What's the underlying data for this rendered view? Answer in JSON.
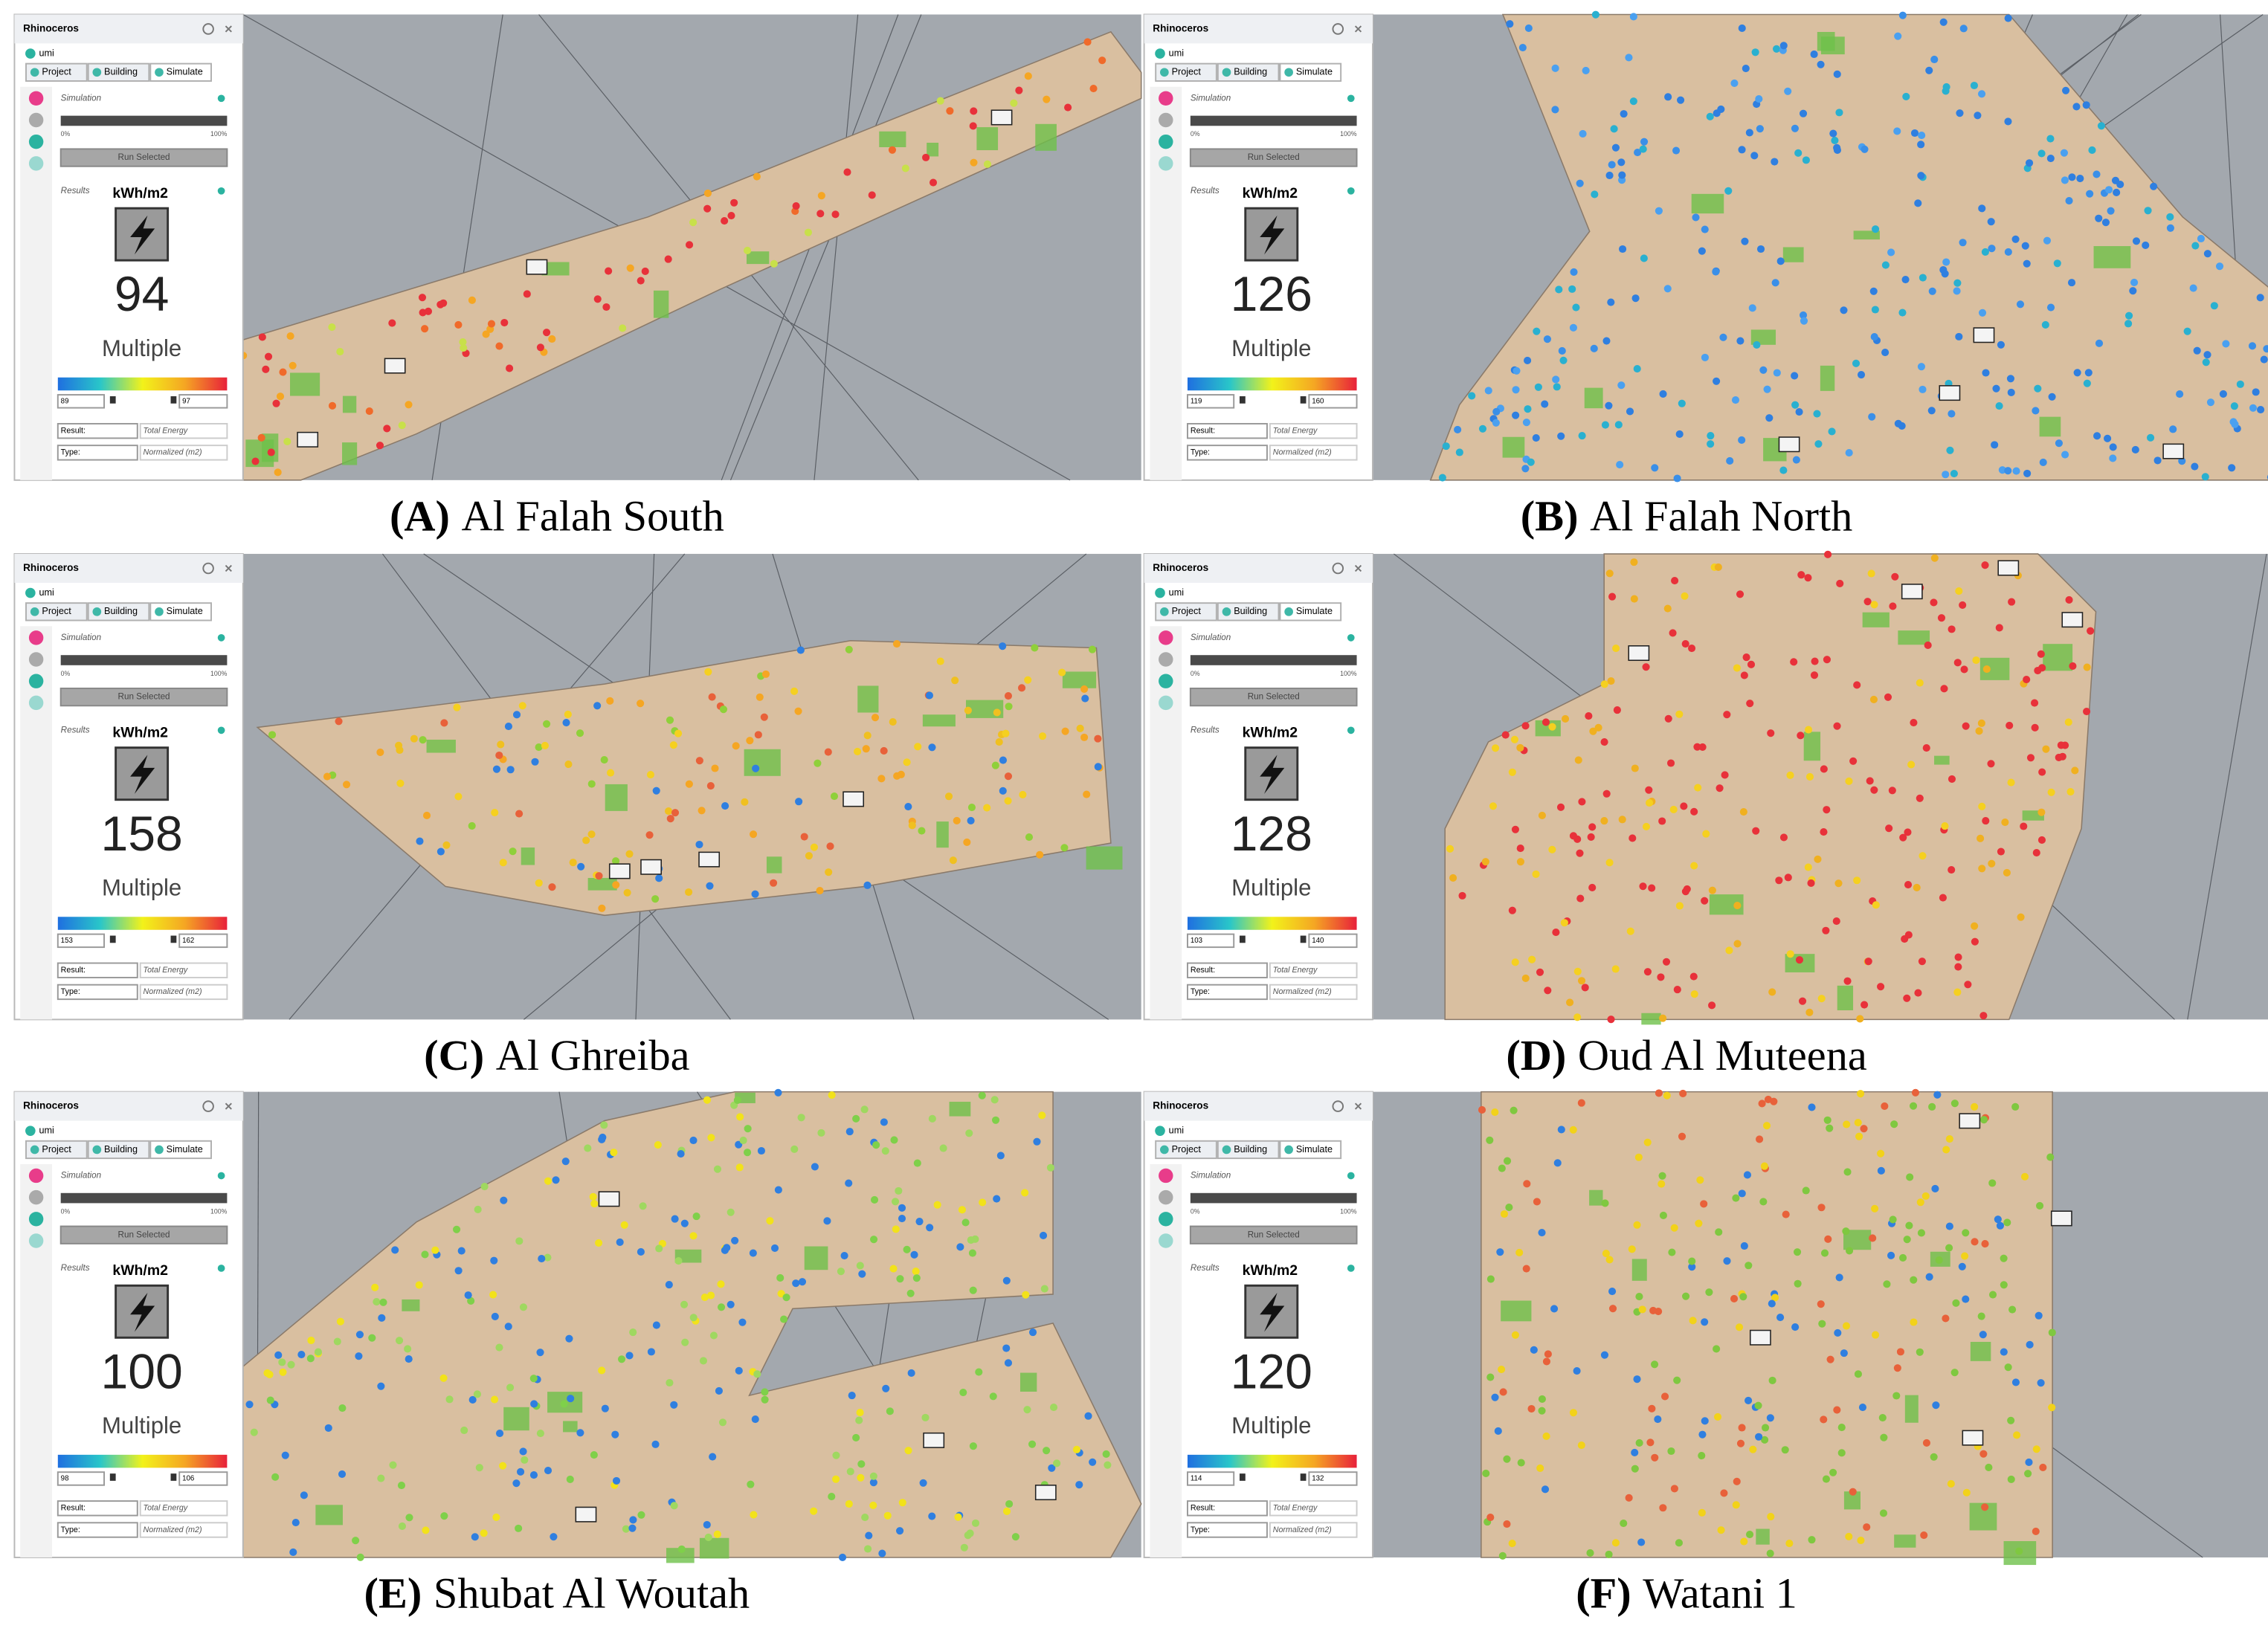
{
  "panels": [
    {
      "label": "(A)",
      "name": "Al Falah South",
      "app_title": "Rhinoceros",
      "tab": "umi",
      "tabs": [
        "Project",
        "Building",
        "Simulate"
      ],
      "simulation": "Simulation",
      "progress_min": "0%",
      "progress_max": "100%",
      "run_button": "Run Selected",
      "results": "Results",
      "unit": "kWh/m2",
      "value": 94,
      "mode": "Multiple",
      "scale_min": 89,
      "scale_max": 97,
      "result_label": "Result:",
      "result_value": "Total Energy",
      "type_label": "Type:",
      "type_value": "Normalized (m2)"
    },
    {
      "label": "(B)",
      "name": "Al Falah North",
      "app_title": "Rhinoceros",
      "tab": "umi",
      "tabs": [
        "Project",
        "Building",
        "Simulate"
      ],
      "simulation": "Simulation",
      "progress_min": "0%",
      "progress_max": "100%",
      "run_button": "Run Selected",
      "results": "Results",
      "unit": "kWh/m2",
      "value": 126,
      "mode": "Multiple",
      "scale_min": 119,
      "scale_max": 160,
      "result_label": "Result:",
      "result_value": "Total Energy",
      "type_label": "Type:",
      "type_value": "Normalized (m2)"
    },
    {
      "label": "(C)",
      "name": "Al Ghreiba",
      "app_title": "Rhinoceros",
      "tab": "umi",
      "tabs": [
        "Project",
        "Building",
        "Simulate"
      ],
      "simulation": "Simulation",
      "progress_min": "0%",
      "progress_max": "100%",
      "run_button": "Run Selected",
      "results": "Results",
      "unit": "kWh/m2",
      "value": 158,
      "mode": "Multiple",
      "scale_min": 153,
      "scale_max": 162,
      "result_label": "Result:",
      "result_value": "Total Energy",
      "type_label": "Type:",
      "type_value": "Normalized (m2)"
    },
    {
      "label": "(D)",
      "name": "Oud Al Muteena",
      "app_title": "Rhinoceros",
      "tab": "umi",
      "tabs": [
        "Project",
        "Building",
        "Simulate"
      ],
      "simulation": "Simulation",
      "progress_min": "0%",
      "progress_max": "100%",
      "run_button": "Run Selected",
      "results": "Results",
      "unit": "kWh/m2",
      "value": 128,
      "mode": "Multiple",
      "scale_min": 103,
      "scale_max": 140,
      "result_label": "Result:",
      "result_value": "Total Energy",
      "type_label": "Type:",
      "type_value": "Normalized (m2)"
    },
    {
      "label": "(E)",
      "name": "Shubat Al Woutah",
      "app_title": "Rhinoceros",
      "tab": "umi",
      "tabs": [
        "Project",
        "Building",
        "Simulate"
      ],
      "simulation": "Simulation",
      "progress_min": "0%",
      "progress_max": "100%",
      "run_button": "Run Selected",
      "results": "Results",
      "unit": "kWh/m2",
      "value": 100,
      "mode": "Multiple",
      "scale_min": 98,
      "scale_max": 106,
      "result_label": "Result:",
      "result_value": "Total Energy",
      "type_label": "Type:",
      "type_value": "Normalized (m2)"
    },
    {
      "label": "(F)",
      "name": "Watani 1",
      "app_title": "Rhinoceros",
      "tab": "umi",
      "tabs": [
        "Project",
        "Building",
        "Simulate"
      ],
      "simulation": "Simulation",
      "progress_min": "0%",
      "progress_max": "100%",
      "run_button": "Run Selected",
      "results": "Results",
      "unit": "kWh/m2",
      "value": 120,
      "mode": "Multiple",
      "scale_min": 114,
      "scale_max": 132,
      "result_label": "Result:",
      "result_value": "Total Energy",
      "type_label": "Type:",
      "type_value": "Normalized (m2)"
    }
  ]
}
